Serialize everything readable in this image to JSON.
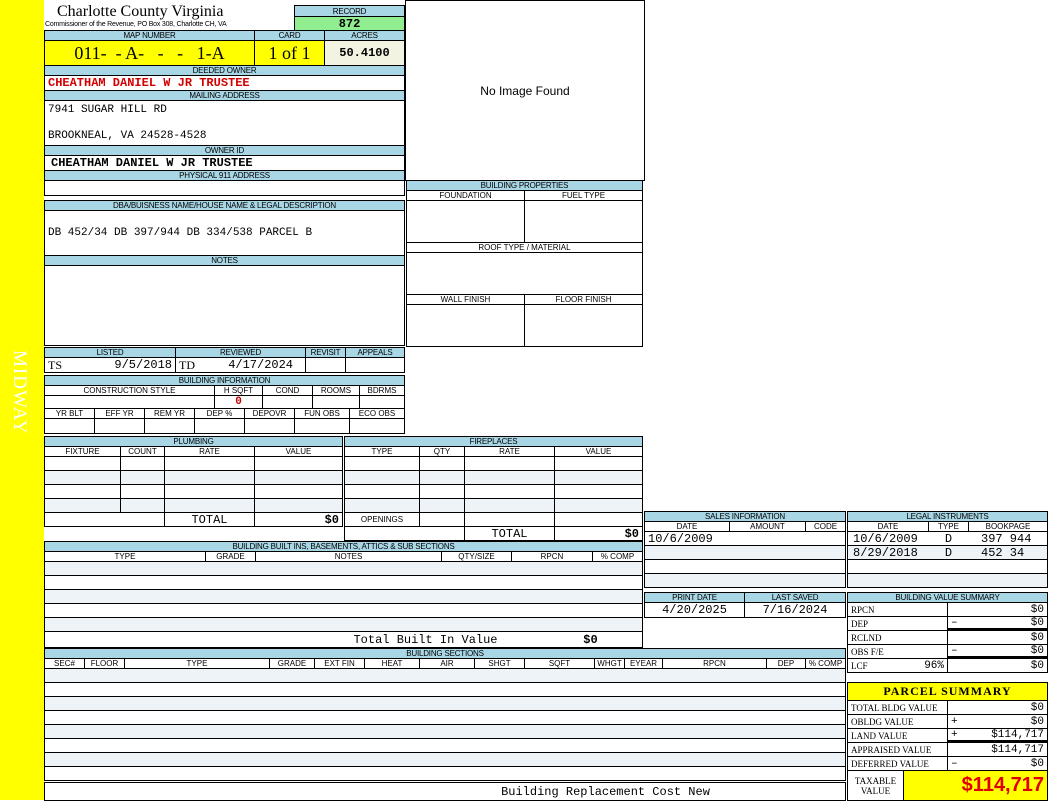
{
  "district": "MIDWAY",
  "header": {
    "title": "Charlotte County Virginia",
    "subtitle": "Commissioner of the Revenue, PO Box 308, Charlotte CH, VA"
  },
  "record": {
    "label": "RECORD",
    "value": "872"
  },
  "map": {
    "map_label": "MAP NUMBER",
    "card_label": "CARD",
    "acres_label": "ACRES",
    "map_number": "011-  - A-   -   -   1-A",
    "card": "1 of 1",
    "acres": "50.4100"
  },
  "owner": {
    "deeded_label": "DEEDED OWNER",
    "deeded_owner": "CHEATHAM DANIEL W JR TRUSTEE",
    "mailing_label": "MAILING ADDRESS",
    "mailing_line1": "7941 SUGAR HILL RD",
    "mailing_line2": "BROOKNEAL, VA 24528-4528",
    "owner_id_label": "OWNER ID",
    "owner_id": "CHEATHAM DANIEL W JR TRUSTEE",
    "physical_label": "PHYSICAL 911 ADDRESS"
  },
  "image": {
    "text": "No Image Found"
  },
  "legal": {
    "label": "DBA/BUISNESS NAME/HOUSE NAME & LEGAL DESCRIPTION",
    "value": "DB 452/34 DB 397/944 DB 334/538 PARCEL B"
  },
  "notes": {
    "label": "NOTES"
  },
  "building_properties": {
    "title": "BUILDING PROPERTIES",
    "foundation": "FOUNDATION",
    "fuel": "FUEL TYPE",
    "roof": "ROOF TYPE / MATERIAL",
    "wall": "WALL FINISH",
    "floor": "FLOOR FINISH"
  },
  "listing": {
    "listed_label": "LISTED",
    "reviewed_label": "REVIEWED",
    "revisit_label": "REVISIT",
    "appeals_label": "APPEALS",
    "listed_by": "TS",
    "listed_date": "9/5/2018",
    "reviewed_by": "TD",
    "reviewed_date": "4/17/2024"
  },
  "building_info": {
    "title": "BUILDING INFORMATION",
    "cols1": [
      "CONSTRUCTION STYLE",
      "H SQFT",
      "COND",
      "ROOMS",
      "BDRMS"
    ],
    "hsqft": "0",
    "cols2": [
      "YR BLT",
      "EFF YR",
      "REM YR",
      "DEP %",
      "DEPOVR",
      "FUN OBS",
      "ECO OBS"
    ]
  },
  "plumbing": {
    "title": "PLUMBING",
    "cols": [
      "FIXTURE",
      "COUNT",
      "RATE",
      "VALUE"
    ],
    "total_label": "TOTAL",
    "total": "$0"
  },
  "fireplaces": {
    "title": "FIREPLACES",
    "cols": [
      "TYPE",
      "QTY",
      "RATE",
      "VALUE"
    ],
    "openings": "OPENINGS",
    "total_label": "TOTAL",
    "total": "$0"
  },
  "built_ins": {
    "title": "BUILDING BUILT INS, BASEMENTS, ATTICS & SUB SECTIONS",
    "cols": [
      "TYPE",
      "GRADE",
      "NOTES",
      "QTY/SIZE",
      "RPCN",
      "% COMP"
    ],
    "total_label": "Total Built In Value",
    "total": "$0"
  },
  "sections": {
    "title": "BUILDING SECTIONS",
    "cols": [
      "SEC#",
      "FLOOR",
      "TYPE",
      "GRADE",
      "EXT FIN",
      "HEAT",
      "AIR",
      "SHGT",
      "SQFT",
      "WHGT",
      "EYEAR",
      "RPCN",
      "DEP",
      "% COMP"
    ],
    "footer": "Building Replacement Cost New"
  },
  "sales": {
    "title": "SALES INFORMATION",
    "cols": [
      "DATE",
      "AMOUNT",
      "CODE"
    ],
    "rows": [
      {
        "date": "10/6/2009",
        "amount": "",
        "code": ""
      }
    ]
  },
  "legal_instruments": {
    "title": "LEGAL INSTRUMENTS",
    "cols": [
      "DATE",
      "TYPE",
      "BOOKPAGE"
    ],
    "rows": [
      {
        "date": "10/6/2009",
        "type": "D",
        "bookpage": "397 944"
      },
      {
        "date": "8/29/2018",
        "type": "D",
        "bookpage": "452 34"
      }
    ]
  },
  "dates": {
    "print_label": "PRINT DATE",
    "print_date": "4/20/2025",
    "saved_label": "LAST SAVED",
    "last_saved": "7/16/2024"
  },
  "bvs": {
    "title": "BUILDING VALUE SUMMARY",
    "rows": [
      {
        "label": "RPCN",
        "extra": "",
        "sign": "",
        "value": "$0"
      },
      {
        "label": "DEP",
        "extra": "",
        "sign": "–",
        "value": "$0"
      },
      {
        "label": "RCLND",
        "extra": "",
        "sign": "",
        "value": "$0"
      },
      {
        "label": "OBS F/E",
        "extra": "",
        "sign": "–",
        "value": "$0"
      },
      {
        "label": "LCF",
        "extra": "96%",
        "sign": "",
        "value": "$0"
      }
    ]
  },
  "parcel": {
    "title": "PARCEL SUMMARY",
    "rows": [
      {
        "label": "TOTAL BLDG VALUE",
        "sign": "",
        "value": "$0"
      },
      {
        "label": "OBLDG VALUE",
        "sign": "+",
        "value": "$0"
      },
      {
        "label": "LAND VALUE",
        "sign": "+",
        "value": "$114,717"
      },
      {
        "label": "APPRAISED VALUE",
        "sign": "",
        "value": "$114,717"
      },
      {
        "label": "DEFERRED VALUE",
        "sign": "–",
        "value": "$0"
      }
    ],
    "taxable_label": "TAXABLE VALUE",
    "taxable_value": "$114,717"
  },
  "colors": {
    "header": "#a9d6e5",
    "yellow": "#ffff00",
    "record": "#90ee90",
    "owner_red": "#d40000"
  }
}
